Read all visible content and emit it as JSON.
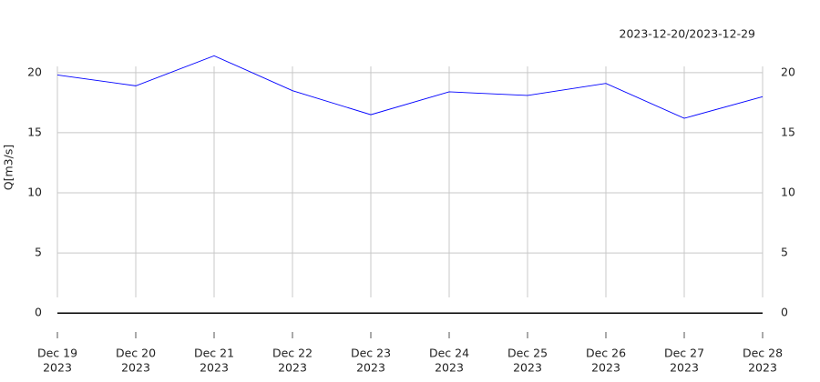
{
  "chart_data": {
    "type": "line",
    "annotation": "2023-12-20/2023-12-29",
    "y_label": "Q[m3/s]",
    "x": [
      "2023-12-19",
      "2023-12-20",
      "2023-12-21",
      "2023-12-22",
      "2023-12-23",
      "2023-12-24",
      "2023-12-25",
      "2023-12-26",
      "2023-12-27",
      "2023-12-28"
    ],
    "series": [
      {
        "color": "#0000ff",
        "values": [
          19.8,
          18.9,
          21.4,
          18.5,
          16.5,
          18.4,
          18.1,
          19.1,
          16.2,
          18.0
        ]
      }
    ],
    "xlim": [
      "2023-12-19",
      "2023-12-28"
    ],
    "xticks": [
      {
        "value": "2023-12-19",
        "label": "Dec 19",
        "sublabel": "2023"
      },
      {
        "value": "2023-12-20",
        "label": "Dec 20",
        "sublabel": "2023"
      },
      {
        "value": "2023-12-21",
        "label": "Dec 21",
        "sublabel": "2023"
      },
      {
        "value": "2023-12-22",
        "label": "Dec 22",
        "sublabel": "2023"
      },
      {
        "value": "2023-12-23",
        "label": "Dec 23",
        "sublabel": "2023"
      },
      {
        "value": "2023-12-24",
        "label": "Dec 24",
        "sublabel": "2023"
      },
      {
        "value": "2023-12-25",
        "label": "Dec 25",
        "sublabel": "2023"
      },
      {
        "value": "2023-12-26",
        "label": "Dec 26",
        "sublabel": "2023"
      },
      {
        "value": "2023-12-27",
        "label": "Dec 27",
        "sublabel": "2023"
      },
      {
        "value": "2023-12-28",
        "label": "Dec 28",
        "sublabel": "2023"
      }
    ],
    "ylim": [
      -2.1,
      21.5
    ],
    "yticks": [
      0,
      5,
      10,
      15,
      20
    ],
    "grid": true
  }
}
